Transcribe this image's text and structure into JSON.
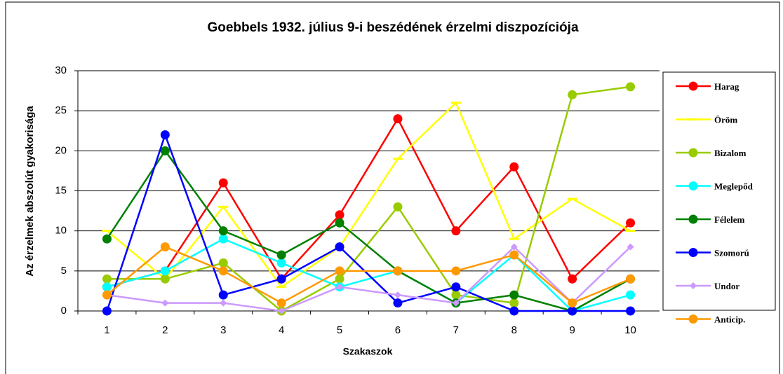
{
  "chart_data": {
    "type": "line",
    "title": "Goebbels 1932. július 9-i beszédének érzelmi diszpozíciója",
    "x_label": "Szakaszok",
    "y_label": "Az érzelmek abszolút gyakorisága",
    "categories": [
      "1",
      "2",
      "3",
      "4",
      "5",
      "6",
      "7",
      "8",
      "9",
      "10"
    ],
    "ylim": [
      0,
      30
    ],
    "yticks": [
      0,
      5,
      10,
      15,
      20,
      25,
      30
    ],
    "grid": true,
    "legend": "right",
    "series": [
      {
        "name": "Harag",
        "color": "#ff0000",
        "marker": "circle",
        "values": [
          3,
          5,
          16,
          4,
          12,
          24,
          10,
          18,
          4,
          11
        ]
      },
      {
        "name": "Öröm",
        "color": "#ffff00",
        "marker": "dash",
        "values": [
          10,
          4,
          13,
          3,
          8,
          19,
          26,
          9,
          14,
          10
        ]
      },
      {
        "name": "Bizalom",
        "color": "#99cc00",
        "marker": "circle",
        "values": [
          4,
          4,
          6,
          0,
          4,
          13,
          2,
          1,
          27,
          28
        ]
      },
      {
        "name": "Meglepőd",
        "color": "#00ffff",
        "marker": "circle",
        "values": [
          3,
          5,
          9,
          6,
          3,
          5,
          1,
          7,
          0,
          2
        ]
      },
      {
        "name": "Félelem",
        "color": "#008000",
        "marker": "circle",
        "values": [
          9,
          20,
          10,
          7,
          11,
          5,
          1,
          2,
          0,
          4
        ]
      },
      {
        "name": "Szomorú",
        "color": "#0000ff",
        "marker": "circle",
        "values": [
          0,
          22,
          2,
          4,
          8,
          1,
          3,
          0,
          0,
          0
        ]
      },
      {
        "name": "Undor",
        "color": "#cc99ff",
        "marker": "diamond",
        "values": [
          2,
          1,
          1,
          0,
          3,
          2,
          1,
          8,
          1,
          8
        ]
      },
      {
        "name": "Anticip.",
        "color": "#ff9900",
        "marker": "circle",
        "values": [
          2,
          8,
          5,
          1,
          5,
          5,
          5,
          7,
          1,
          4
        ]
      }
    ]
  }
}
